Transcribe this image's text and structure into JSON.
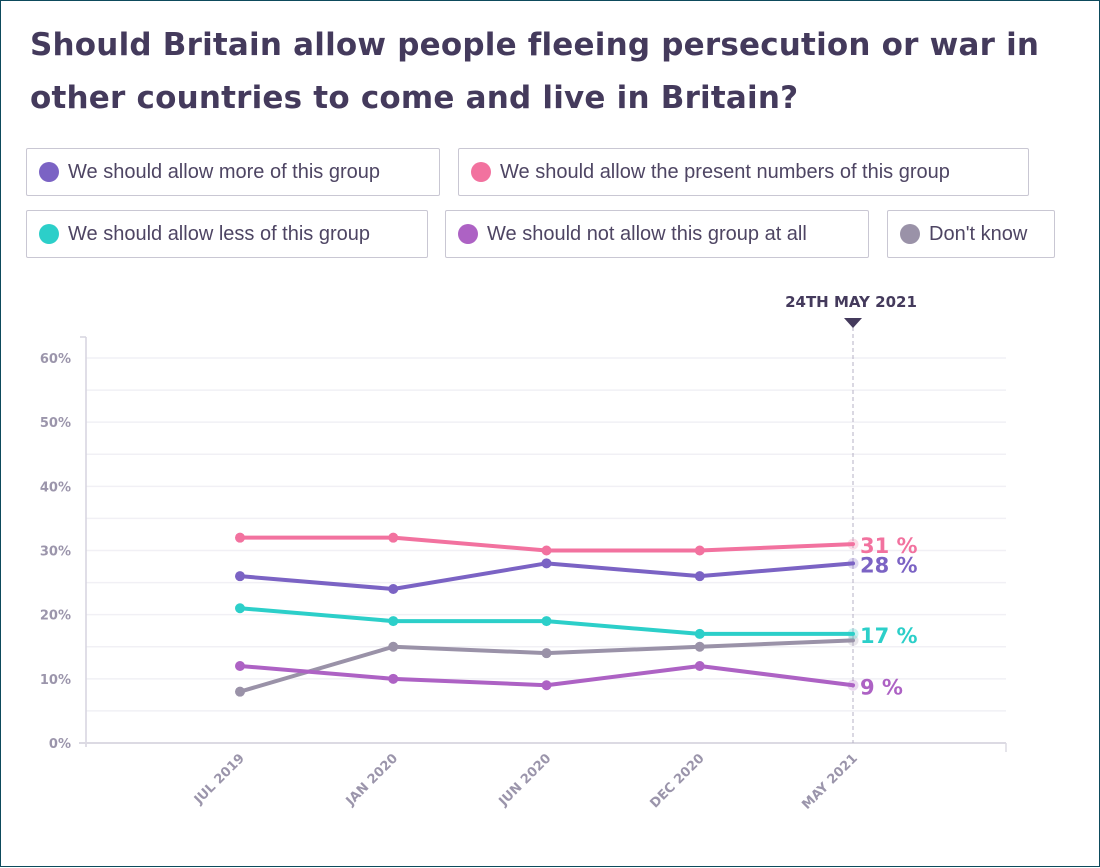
{
  "title": "Should Britain allow people fleeing persecution or war in other countries to come and live in Britain?",
  "legend": [
    {
      "label": "We should allow more of this group",
      "color": "#7b63c4"
    },
    {
      "label": "We should allow the present numbers of this group",
      "color": "#f2729f"
    },
    {
      "label": "We should allow less of this group",
      "color": "#2ccfc9"
    },
    {
      "label": "We should not allow this group at all",
      "color": "#ad62c4"
    },
    {
      "label": "Don't know",
      "color": "#9a92a8"
    }
  ],
  "chart_data": {
    "type": "line",
    "title": "Should Britain allow people fleeing persecution or war in other countries to come and live in Britain?",
    "xlabel": "",
    "ylabel": "",
    "categories": [
      "JUL 2019",
      "JAN 2020",
      "JUN 2020",
      "DEC 2020",
      "MAY 2021"
    ],
    "ylim": [
      0,
      60
    ],
    "yticks": [
      "0%",
      "10%",
      "20%",
      "30%",
      "40%",
      "50%",
      "60%"
    ],
    "ytick_values": [
      0,
      10,
      20,
      30,
      40,
      50,
      60
    ],
    "grid": true,
    "legend_position": "top",
    "marker": {
      "label": "24TH MAY 2021",
      "category": "MAY 2021"
    },
    "series": [
      {
        "name": "We should allow the present numbers of this group",
        "color": "#f2729f",
        "values": [
          32,
          32,
          30,
          30,
          31
        ],
        "end_label": "31 %"
      },
      {
        "name": "We should allow more of this group",
        "color": "#7b63c4",
        "values": [
          26,
          24,
          28,
          26,
          28
        ],
        "end_label": "28 %"
      },
      {
        "name": "We should allow less of this group",
        "color": "#2ccfc9",
        "values": [
          21,
          19,
          19,
          17,
          17
        ],
        "end_label": "17 %"
      },
      {
        "name": "Don't know",
        "color": "#9a92a8",
        "values": [
          8,
          15,
          14,
          15,
          16
        ],
        "end_label": ""
      },
      {
        "name": "We should not allow this group at all",
        "color": "#ad62c4",
        "values": [
          12,
          10,
          9,
          12,
          9
        ],
        "end_label": "9 %"
      }
    ]
  }
}
